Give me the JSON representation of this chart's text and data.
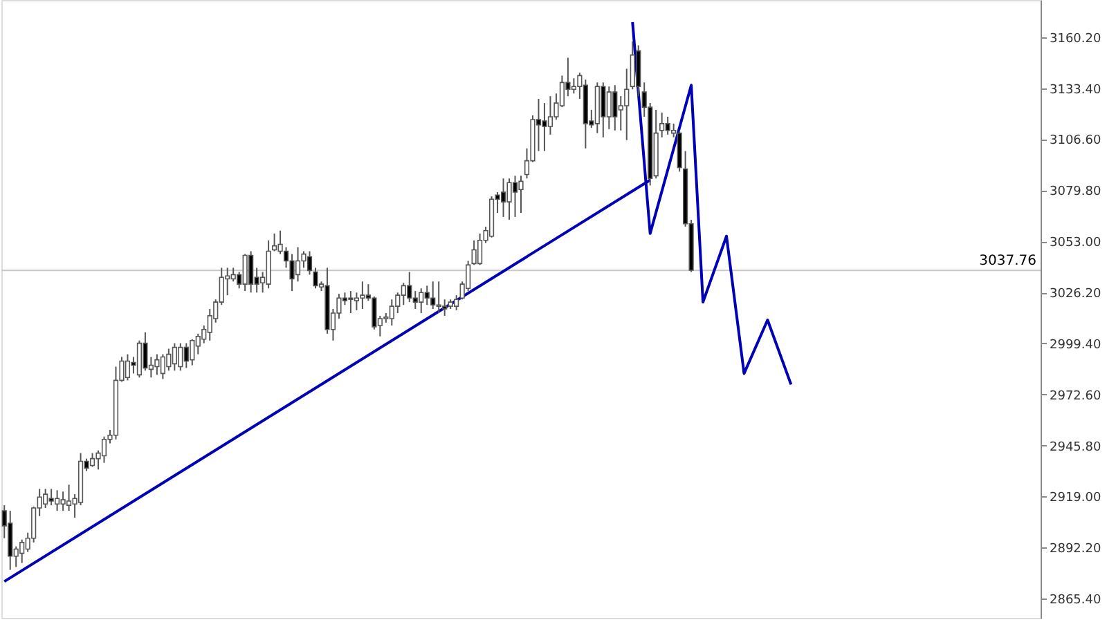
{
  "chart_data": {
    "type": "candlestick",
    "categories": [
      null,
      null,
      null,
      null,
      null,
      null,
      null,
      null,
      null,
      null,
      null,
      null,
      null,
      null,
      null,
      null,
      null,
      null,
      null,
      null,
      null,
      null,
      null,
      null,
      null,
      null,
      null,
      null,
      null,
      null,
      null,
      null,
      null,
      null,
      null,
      null,
      null,
      null,
      null,
      null,
      null,
      null,
      null,
      null,
      null,
      null,
      null,
      null,
      null,
      null,
      null,
      null,
      null,
      null,
      null,
      null,
      null,
      null,
      null,
      null,
      null,
      null,
      null,
      null,
      null,
      null,
      null,
      null,
      null,
      null,
      null,
      null,
      null,
      null,
      null,
      null,
      null,
      null,
      null,
      null,
      null,
      null,
      null,
      null,
      null,
      null,
      null,
      null,
      null,
      null,
      null,
      null,
      null,
      null,
      null,
      null,
      null,
      null,
      null,
      null,
      null,
      null,
      null,
      null,
      null,
      null,
      null,
      null,
      null,
      null,
      null,
      null,
      null,
      null,
      null,
      null,
      null,
      null,
      null,
      null,
      null,
      null,
      null,
      null,
      null,
      null,
      null,
      null,
      null,
      null,
      null,
      null,
      null,
      null,
      null,
      null,
      null,
      null,
      null,
      null,
      null,
      null,
      null,
      null,
      null,
      null,
      null,
      null,
      null,
      null,
      null,
      null,
      null,
      null,
      null,
      null,
      null,
      null,
      null,
      null,
      null,
      null,
      null,
      null,
      null,
      null,
      null,
      null,
      null,
      null,
      null,
      null,
      null,
      null,
      null,
      null,
      null
    ],
    "ohlc": [
      [
        2911.5,
        2914.4,
        2897.1,
        2903.6
      ],
      [
        2905.0,
        2911.5,
        2880.5,
        2887.7
      ],
      [
        2887.7,
        2892.8,
        2882.0,
        2891.4
      ],
      [
        2889.2,
        2896.4,
        2884.1,
        2894.9
      ],
      [
        2891.4,
        2900.0,
        2889.9,
        2897.1
      ],
      [
        2897.1,
        2913.7,
        2894.9,
        2913.0
      ],
      [
        2913.0,
        2923.0,
        2908.7,
        2918.7
      ],
      [
        2915.1,
        2923.0,
        2913.0,
        2920.2
      ],
      [
        2918.0,
        2923.0,
        2914.4,
        2916.6
      ],
      [
        2915.1,
        2922.3,
        2911.5,
        2918.0
      ],
      [
        2915.1,
        2921.6,
        2911.5,
        2917.3
      ],
      [
        2914.4,
        2925.2,
        2911.5,
        2916.6
      ],
      [
        2915.1,
        2920.2,
        2907.9,
        2918.0
      ],
      [
        2915.9,
        2941.8,
        2914.4,
        2937.5
      ],
      [
        2937.5,
        2938.9,
        2932.4,
        2933.9
      ],
      [
        2935.3,
        2941.8,
        2934.6,
        2938.9
      ],
      [
        2938.9,
        2943.2,
        2933.2,
        2941.8
      ],
      [
        2940.4,
        2950.5,
        2936.7,
        2949.0
      ],
      [
        2949.0,
        2954.0,
        2946.9,
        2951.2
      ],
      [
        2951.2,
        2987.2,
        2949.0,
        2980.0
      ],
      [
        2980.0,
        2992.3,
        2979.3,
        2990.1
      ],
      [
        2981.5,
        2993.7,
        2980.0,
        2990.1
      ],
      [
        2989.4,
        2992.3,
        2983.6,
        2987.9
      ],
      [
        2982.9,
        3000.9,
        2981.5,
        2999.5
      ],
      [
        2999.5,
        3005.2,
        2985.1,
        2986.5
      ],
      [
        2985.8,
        2992.3,
        2981.5,
        2987.9
      ],
      [
        2987.2,
        2993.7,
        2982.9,
        2990.8
      ],
      [
        2983.6,
        2993.7,
        2980.7,
        2992.3
      ],
      [
        2987.2,
        2996.6,
        2985.1,
        2993.7
      ],
      [
        2988.7,
        2999.5,
        2985.1,
        2997.3
      ],
      [
        2987.2,
        2999.5,
        2985.1,
        2997.3
      ],
      [
        2997.3,
        2999.5,
        2986.5,
        2990.1
      ],
      [
        2990.8,
        3001.6,
        2987.9,
        3000.9
      ],
      [
        2998.0,
        3004.5,
        2993.7,
        3003.1
      ],
      [
        3001.6,
        3008.8,
        2999.5,
        3006.7
      ],
      [
        3005.2,
        3017.5,
        3000.9,
        3013.9
      ],
      [
        3012.4,
        3022.5,
        3010.3,
        3021.1
      ],
      [
        3021.1,
        3039.1,
        3019.6,
        3034.1
      ],
      [
        3033.3,
        3039.1,
        3024.7,
        3034.8
      ],
      [
        3033.3,
        3039.1,
        3031.9,
        3035.5
      ],
      [
        3035.5,
        3036.9,
        3028.3,
        3030.5
      ],
      [
        3030.5,
        3046.3,
        3026.9,
        3045.6
      ],
      [
        3045.6,
        3047.8,
        3026.1,
        3030.5
      ],
      [
        3034.1,
        3039.1,
        3026.1,
        3030.5
      ],
      [
        3031.2,
        3036.9,
        3026.1,
        3034.1
      ],
      [
        3030.5,
        3053.5,
        3028.3,
        3047.8
      ],
      [
        3048.5,
        3057.1,
        3047.8,
        3050.6
      ],
      [
        3047.8,
        3058.6,
        3046.3,
        3051.4
      ],
      [
        3047.8,
        3049.9,
        3039.1,
        3042.7
      ],
      [
        3042.7,
        3046.3,
        3026.9,
        3033.3
      ],
      [
        3035.5,
        3049.9,
        3031.9,
        3042.7
      ],
      [
        3042.7,
        3047.8,
        3039.1,
        3046.3
      ],
      [
        3044.9,
        3047.8,
        3035.5,
        3037.7
      ],
      [
        3036.9,
        3039.1,
        3028.3,
        3029.7
      ],
      [
        3029.0,
        3031.9,
        3026.9,
        3030.5
      ],
      [
        3029.7,
        3039.1,
        3004.5,
        3006.7
      ],
      [
        3006.7,
        3017.5,
        3000.9,
        3015.3
      ],
      [
        3015.3,
        3025.4,
        3012.4,
        3023.2
      ],
      [
        3023.2,
        3026.1,
        3019.6,
        3021.8
      ],
      [
        3023.2,
        3026.9,
        3015.3,
        3022.5
      ],
      [
        3021.8,
        3026.1,
        3016.8,
        3023.2
      ],
      [
        3023.2,
        3031.9,
        3017.5,
        3024.7
      ],
      [
        3024.7,
        3030.5,
        3021.8,
        3023.2
      ],
      [
        3023.2,
        3024.0,
        3006.7,
        3008.1
      ],
      [
        3008.8,
        3013.9,
        3003.1,
        3012.4
      ],
      [
        3012.4,
        3015.3,
        3010.3,
        3013.2
      ],
      [
        3012.4,
        3022.5,
        3008.8,
        3018.9
      ],
      [
        3018.9,
        3026.1,
        3015.3,
        3024.7
      ],
      [
        3024.7,
        3031.2,
        3019.6,
        3029.7
      ],
      [
        3029.7,
        3036.9,
        3021.1,
        3023.2
      ],
      [
        3023.2,
        3026.9,
        3017.5,
        3021.1
      ],
      [
        3021.1,
        3028.3,
        3015.3,
        3026.1
      ],
      [
        3026.1,
        3029.7,
        3019.6,
        3023.2
      ],
      [
        3023.2,
        3031.9,
        3017.5,
        3019.6
      ],
      [
        3018.9,
        3031.9,
        3015.3,
        3019.6
      ],
      [
        3018.9,
        3022.5,
        3013.9,
        3017.5
      ],
      [
        3018.9,
        3022.5,
        3017.5,
        3021.1
      ],
      [
        3018.9,
        3024.7,
        3016.8,
        3022.5
      ],
      [
        3023.2,
        3031.9,
        3022.5,
        3030.5
      ],
      [
        3028.3,
        3042.7,
        3026.9,
        3040.6
      ],
      [
        3041.3,
        3053.5,
        3040.6,
        3048.5
      ],
      [
        3041.3,
        3057.1,
        3040.6,
        3053.5
      ],
      [
        3053.5,
        3060.7,
        3052.1,
        3058.6
      ],
      [
        3055.7,
        3076.6,
        3055.0,
        3075.1
      ],
      [
        3077.3,
        3078.8,
        3067.9,
        3075.1
      ],
      [
        3078.8,
        3086.0,
        3065.8,
        3073.7
      ],
      [
        3073.7,
        3086.0,
        3064.3,
        3083.8
      ],
      [
        3083.8,
        3087.4,
        3065.8,
        3078.8
      ],
      [
        3080.2,
        3087.4,
        3067.9,
        3084.5
      ],
      [
        3088.1,
        3101.8,
        3086.0,
        3095.3
      ],
      [
        3095.3,
        3119.1,
        3094.6,
        3116.9
      ],
      [
        3116.9,
        3127.8,
        3100.4,
        3114.1
      ],
      [
        3116.2,
        3125.6,
        3100.4,
        3113.3
      ],
      [
        3113.3,
        3129.2,
        3109.0,
        3118.4
      ],
      [
        3118.4,
        3130.6,
        3116.9,
        3125.6
      ],
      [
        3124.2,
        3140.0,
        3123.4,
        3136.4
      ],
      [
        3136.4,
        3149.4,
        3129.2,
        3132.8
      ],
      [
        3132.8,
        3138.6,
        3130.6,
        3134.3
      ],
      [
        3134.3,
        3141.5,
        3127.8,
        3140.0
      ],
      [
        3135.0,
        3137.9,
        3101.8,
        3114.8
      ],
      [
        3116.2,
        3122.0,
        3112.6,
        3114.1
      ],
      [
        3114.8,
        3136.4,
        3109.8,
        3134.3
      ],
      [
        3134.3,
        3136.4,
        3107.6,
        3118.4
      ],
      [
        3118.4,
        3134.3,
        3111.9,
        3131.4
      ],
      [
        3131.4,
        3135.0,
        3111.2,
        3118.4
      ],
      [
        3122.0,
        3129.2,
        3111.2,
        3124.2
      ],
      [
        3124.2,
        3143.6,
        3106.1,
        3132.8
      ],
      [
        3134.3,
        3158.0,
        3132.8,
        3150.8
      ],
      [
        3153.0,
        3155.9,
        3129.2,
        3134.3
      ],
      [
        3131.4,
        3136.4,
        3118.4,
        3123.4
      ],
      [
        3123.4,
        3125.6,
        3082.3,
        3086.0
      ],
      [
        3087.4,
        3122.0,
        3086.0,
        3109.8
      ],
      [
        3111.2,
        3120.6,
        3107.6,
        3114.8
      ],
      [
        3114.8,
        3118.4,
        3109.0,
        3111.2
      ],
      [
        3109.8,
        3114.8,
        3107.6,
        3111.2
      ],
      [
        3109.8,
        3111.2,
        3089.6,
        3091.7
      ],
      [
        3091.0,
        3100.4,
        3060.7,
        3062.2
      ],
      [
        3062.2,
        3064.3,
        3036.9,
        3037.8
      ],
      null,
      null,
      null,
      null,
      null,
      null,
      null,
      null,
      null,
      null,
      null,
      null,
      null,
      null,
      null,
      null,
      null,
      null,
      null,
      null,
      null,
      null,
      null,
      null,
      null,
      null,
      null,
      null,
      null,
      null,
      null,
      null,
      null,
      null,
      null,
      null,
      null,
      null,
      null,
      null,
      null,
      null,
      null,
      null,
      null,
      null,
      null,
      null,
      null,
      null,
      null,
      null,
      null,
      null,
      null,
      null,
      null,
      null,
      null
    ],
    "ylim": [
      2855.3,
      3179.7
    ],
    "yticks": [
      {
        "value": 2865.4,
        "label": "2865.40"
      },
      {
        "value": 2892.2,
        "label": "2892.20"
      },
      {
        "value": 2919.0,
        "label": "2919.00"
      },
      {
        "value": 2945.8,
        "label": "2945.80"
      },
      {
        "value": 2972.6,
        "label": "2972.60"
      },
      {
        "value": 2999.4,
        "label": "2999.40"
      },
      {
        "value": 3026.2,
        "label": "3026.20"
      },
      {
        "value": 3053.0,
        "label": "3053.00"
      },
      {
        "value": 3079.8,
        "label": "3079.80"
      },
      {
        "value": 3106.6,
        "label": "3106.60"
      },
      {
        "value": 3133.4,
        "label": "3133.40"
      },
      {
        "value": 3160.2,
        "label": "3160.20"
      }
    ],
    "grid": false,
    "series": [
      {
        "type": "line",
        "color": "#0000b4",
        "values": [
          2874.4,
          null,
          null,
          null,
          null,
          null,
          null,
          null,
          null,
          null,
          null,
          null,
          null,
          null,
          null,
          null,
          null,
          null,
          null,
          null,
          null,
          null,
          null,
          null,
          null,
          null,
          null,
          null,
          null,
          null,
          null,
          null,
          null,
          null,
          null,
          null,
          null,
          null,
          null,
          null,
          null,
          null,
          null,
          null,
          null,
          null,
          null,
          null,
          null,
          null,
          null,
          null,
          null,
          null,
          null,
          null,
          null,
          null,
          null,
          null,
          null,
          null,
          null,
          null,
          null,
          null,
          null,
          null,
          null,
          null,
          null,
          null,
          null,
          null,
          null,
          null,
          null,
          null,
          null,
          null,
          null,
          null,
          null,
          null,
          null,
          null,
          null,
          null,
          null,
          null,
          null,
          null,
          null,
          null,
          null,
          null,
          null,
          null,
          null,
          null,
          null,
          null,
          null,
          null,
          null,
          null,
          null,
          null,
          null,
          null,
          3085.2,
          null,
          null,
          null,
          null,
          null,
          null,
          null,
          null,
          null,
          null,
          null,
          null,
          null,
          null,
          null,
          null,
          null,
          null,
          null,
          null,
          null,
          null,
          null,
          null,
          null,
          null,
          null,
          null,
          null,
          null,
          null,
          null,
          null,
          null,
          null,
          null,
          null,
          null,
          null,
          null,
          null,
          null,
          null,
          null,
          null,
          null,
          null,
          null,
          null,
          null,
          null,
          null,
          null,
          null,
          null,
          null,
          null,
          null,
          null,
          null,
          null,
          null,
          null,
          null,
          null,
          null
        ]
      },
      {
        "type": "line",
        "color": "#0000b4",
        "values": [
          null,
          null,
          null,
          null,
          null,
          null,
          null,
          null,
          null,
          null,
          null,
          null,
          null,
          null,
          null,
          null,
          null,
          null,
          null,
          null,
          null,
          null,
          null,
          null,
          null,
          null,
          null,
          null,
          null,
          null,
          null,
          null,
          null,
          null,
          null,
          null,
          null,
          null,
          null,
          null,
          null,
          null,
          null,
          null,
          null,
          null,
          null,
          null,
          null,
          null,
          null,
          null,
          null,
          null,
          null,
          null,
          null,
          null,
          null,
          null,
          null,
          null,
          null,
          null,
          null,
          null,
          null,
          null,
          null,
          null,
          null,
          null,
          null,
          null,
          null,
          null,
          null,
          null,
          null,
          null,
          null,
          null,
          null,
          null,
          null,
          null,
          null,
          null,
          null,
          null,
          null,
          null,
          null,
          null,
          null,
          null,
          null,
          null,
          null,
          null,
          null,
          null,
          null,
          null,
          null,
          null,
          null,
          3168.1,
          null,
          null,
          3057.1,
          null,
          null,
          null,
          null,
          null,
          null,
          3135.0,
          null,
          3021.1,
          null,
          null,
          null,
          3055.7,
          null,
          null,
          2983.6,
          null,
          null,
          null,
          3011.7,
          null,
          null,
          null,
          2977.8,
          null,
          null,
          null,
          null,
          null,
          null,
          null,
          null,
          null,
          null,
          null,
          null,
          null,
          null,
          null,
          null,
          null,
          null,
          null,
          null,
          null,
          null,
          null,
          null,
          null,
          null,
          null,
          null,
          null,
          null,
          null,
          null,
          null,
          null,
          null,
          null,
          null,
          null,
          null,
          null,
          null,
          null
        ]
      }
    ],
    "ref_lines": [
      {
        "axis": "y",
        "value": 3037.76,
        "label": "3037.76",
        "color": "#c8c8c8"
      }
    ]
  }
}
